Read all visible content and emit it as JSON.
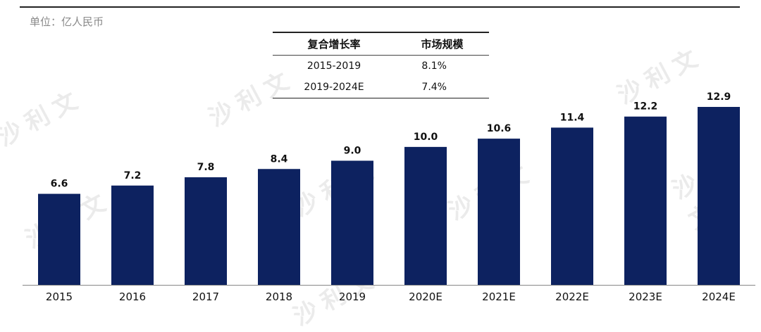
{
  "unit_label": "单位：亿人民币",
  "cagr_table": {
    "headers": [
      "复合增长率",
      "市场规模"
    ],
    "rows": [
      {
        "period": "2015-2019",
        "rate": "8.1%"
      },
      {
        "period": "2019-2024E",
        "rate": "7.4%"
      }
    ]
  },
  "watermark": "沙利文",
  "chart_data": {
    "type": "bar",
    "title": "",
    "xlabel": "",
    "ylabel": "",
    "categories": [
      "2015",
      "2016",
      "2017",
      "2018",
      "2019",
      "2020E",
      "2021E",
      "2022E",
      "2023E",
      "2024E"
    ],
    "values": [
      6.6,
      7.2,
      7.8,
      8.4,
      9.0,
      10.0,
      10.6,
      11.4,
      12.2,
      12.9
    ],
    "value_labels": [
      "6.6",
      "7.2",
      "7.8",
      "8.4",
      "9.0",
      "10.0",
      "10.6",
      "11.4",
      "12.2",
      "12.9"
    ],
    "ylim": [
      0,
      14.5
    ],
    "grid": false,
    "bar_color": "#0d2260"
  }
}
